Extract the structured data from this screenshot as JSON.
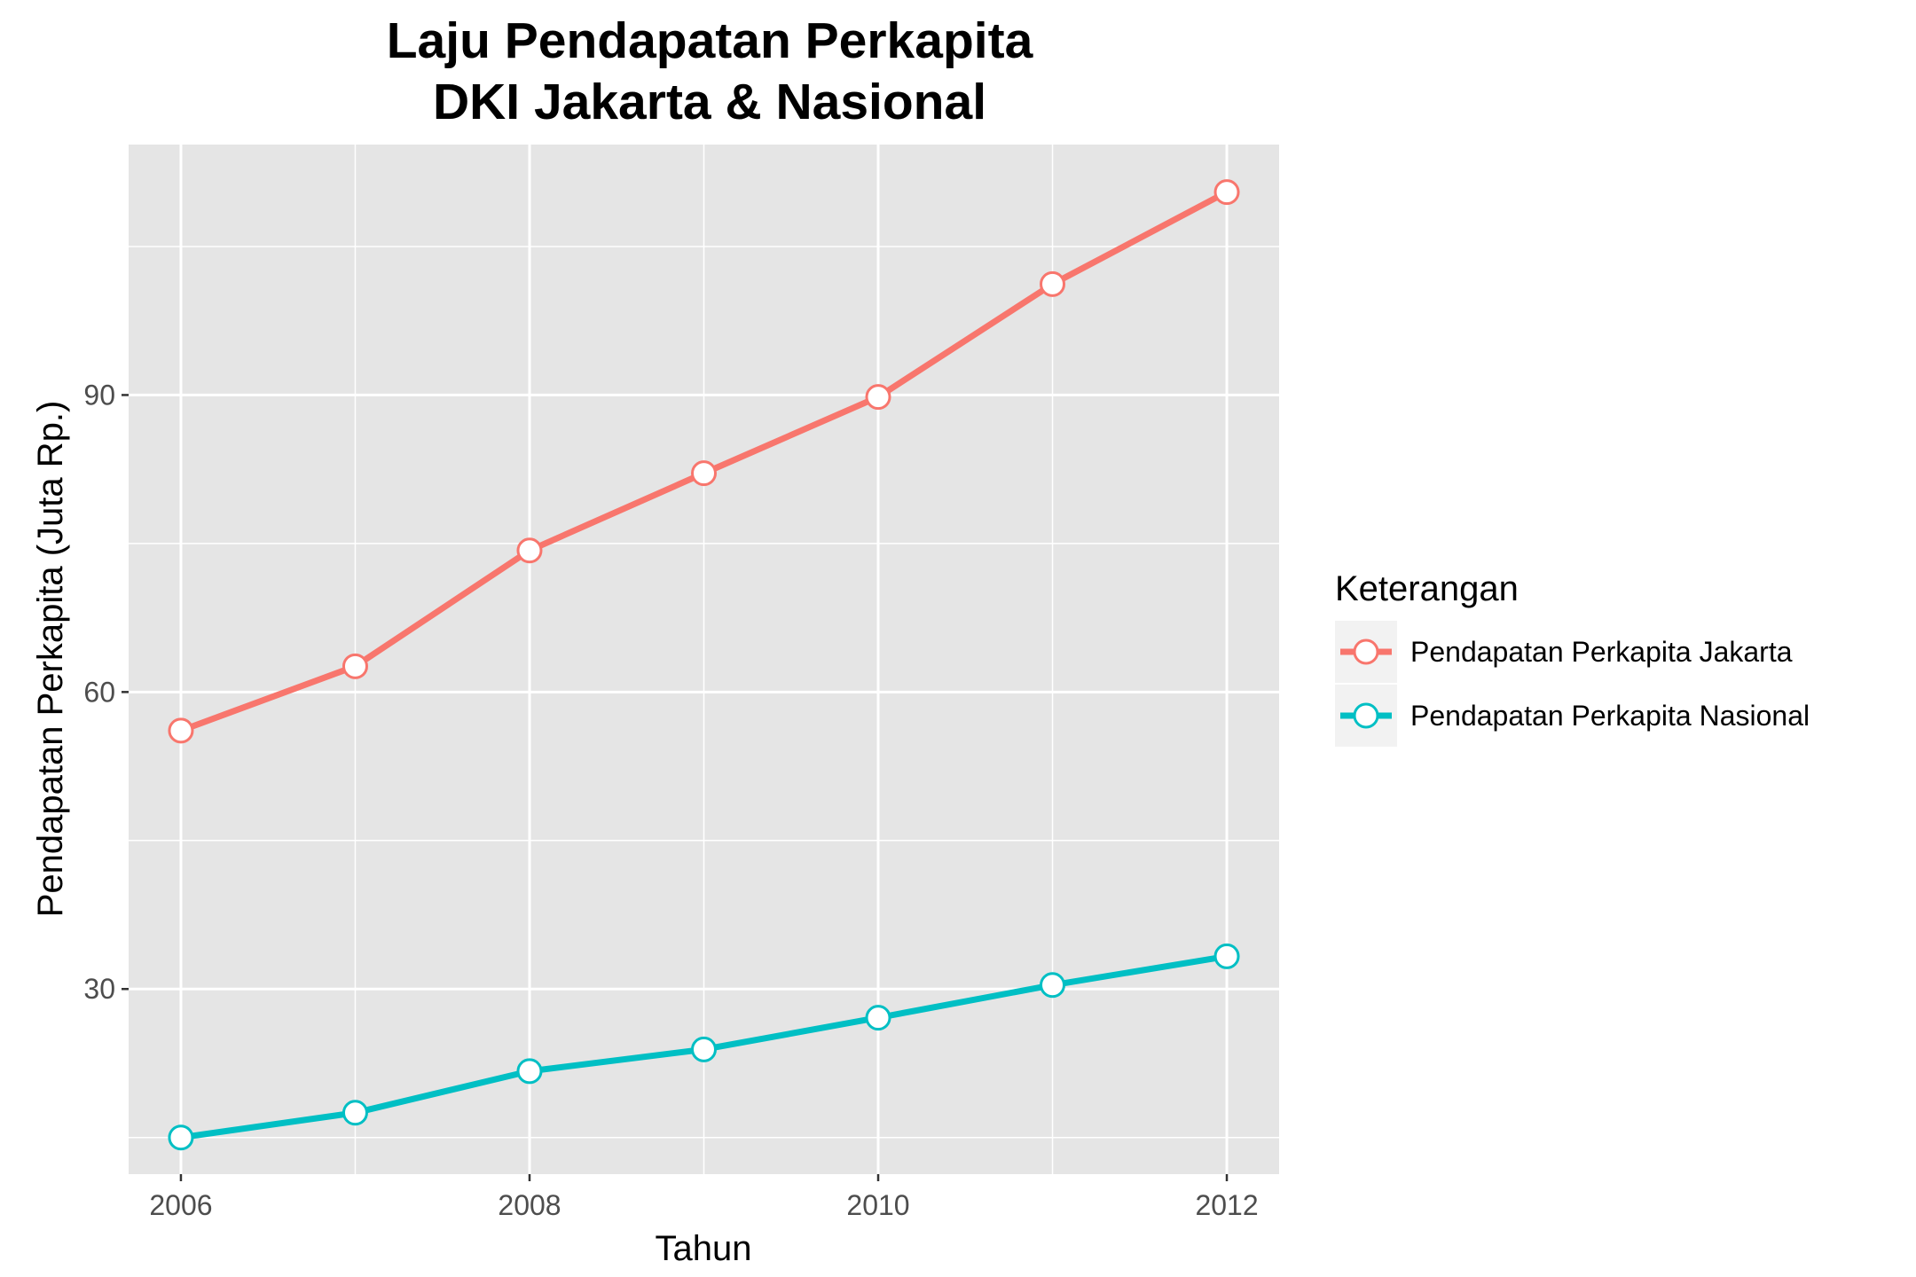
{
  "chart_data": {
    "type": "line",
    "title": [
      "Laju Pendapatan Perkapita",
      "DKI Jakarta & Nasional"
    ],
    "xlabel": "Tahun",
    "ylabel": "Pendapatan Perkapita (Juta Rp.)",
    "x": [
      2006,
      2007,
      2008,
      2009,
      2010,
      2011,
      2012
    ],
    "xticks": [
      2006,
      2008,
      2010,
      2012
    ],
    "yticks": [
      30,
      60,
      90
    ],
    "xlim": [
      2005.7,
      2012.3
    ],
    "ylim": [
      11.3,
      115.3
    ],
    "grid": true,
    "legend_title": "Keterangan",
    "legend_position": "right",
    "series": [
      {
        "name": "Pendapatan Perkapita Jakarta",
        "color": "#F8766D",
        "values": [
          56.1,
          62.6,
          74.3,
          82.1,
          89.8,
          101.2,
          110.5
        ]
      },
      {
        "name": "Pendapatan Perkapita Nasional",
        "color": "#00BFC4",
        "values": [
          15.0,
          17.5,
          21.7,
          23.9,
          27.1,
          30.4,
          33.3
        ]
      }
    ]
  }
}
